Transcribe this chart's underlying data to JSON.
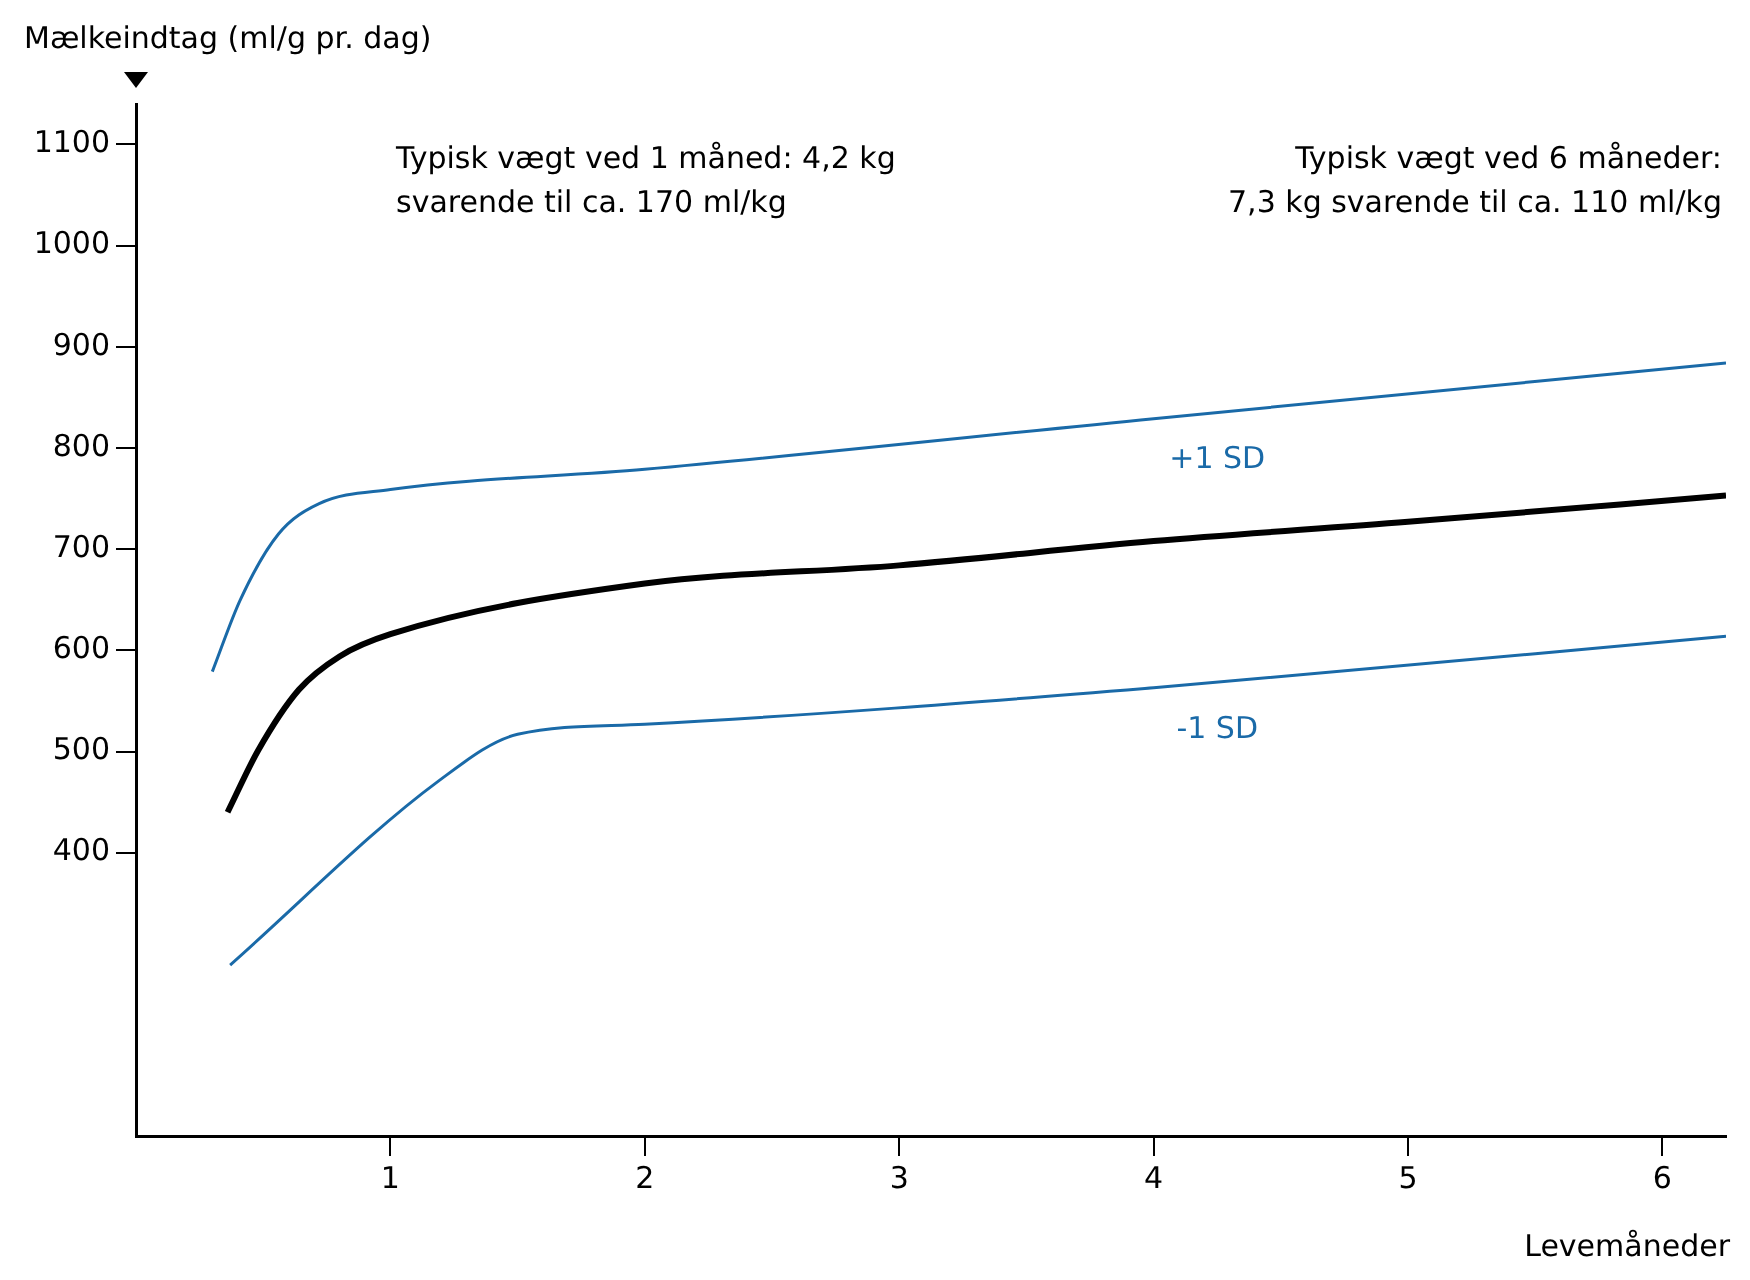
{
  "chart_data": {
    "type": "line",
    "ylabel": "Mælkeindtag (ml/g pr. dag)",
    "xlabel": "Levemåneder",
    "annotations": [
      "Typisk vægt ved 1 måned: 4,2 kg\nsvarende til ca. 170 ml/kg",
      "Typisk vægt ved 6 måneder:\n7,3 kg svarende til ca. 110 ml/kg"
    ],
    "series": [
      {
        "name": "+1 SD",
        "color": "#1a6aa8",
        "x": [
          0.3,
          0.41,
          0.56,
          0.72,
          1,
          2,
          4,
          6.25
        ],
        "values": [
          579,
          650,
          715,
          745,
          759,
          779,
          829,
          884
        ]
      },
      {
        "color": "#000000",
        "x": [
          0.36,
          0.48,
          0.64,
          0.8,
          1,
          2,
          3,
          4,
          5,
          6.25
        ],
        "values": [
          440,
          501,
          561,
          594,
          616,
          666,
          684,
          708,
          727,
          753
        ]
      },
      {
        "name": "-1 SD",
        "color": "#1a6aa8",
        "x": [
          0.37,
          1.19,
          1.5,
          2,
          4,
          6.25
        ],
        "values": [
          289,
          471,
          517,
          527,
          563,
          614
        ]
      }
    ],
    "xlim": [
      0,
      6.25
    ],
    "xticks": [
      1,
      2,
      3,
      4,
      5,
      6
    ],
    "ylim": [
      120,
      1140
    ],
    "yticks": [
      400,
      500,
      600,
      700,
      800,
      900,
      1000,
      1100
    ],
    "grid": false,
    "legend": false
  }
}
